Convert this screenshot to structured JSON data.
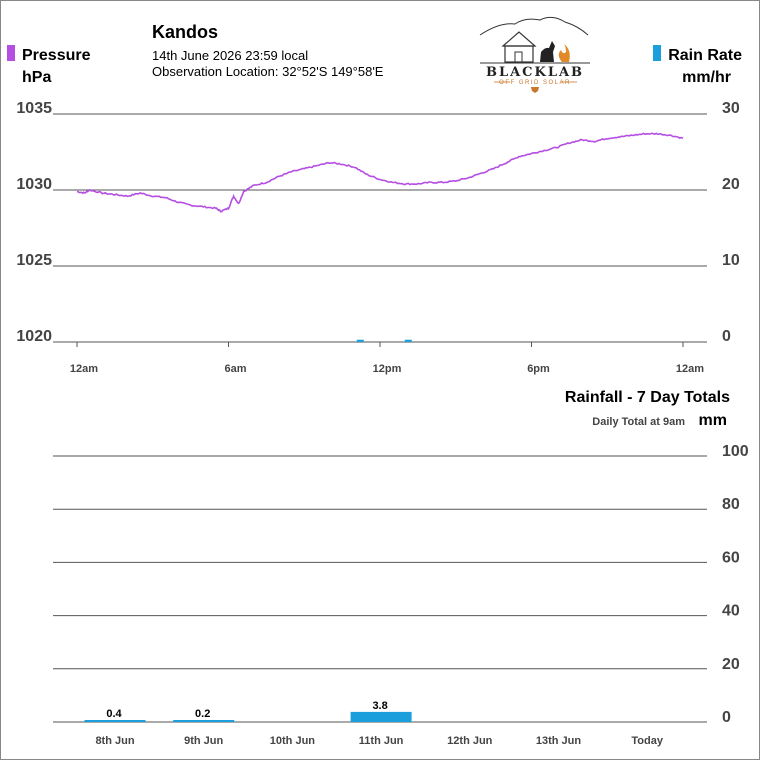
{
  "header": {
    "station": "Kandos",
    "date_time": "14th June 2026  23:59 local",
    "location_label": "Observation Location:",
    "location_coords": "32°52'S 149°58'E"
  },
  "logo": {
    "brand": "BLACKLAB",
    "tagline": "OFF GRID SOLAR",
    "accent_color": "#c8782a"
  },
  "colors": {
    "pressure": "#b54fe3",
    "rain": "#1a9fdc",
    "grid": "#555555",
    "axis_text": "#444444"
  },
  "chart_data": [
    {
      "type": "line",
      "legend_left": {
        "name": "Pressure",
        "unit": "hPa"
      },
      "legend_right": {
        "name": "Rain Rate",
        "unit": "mm/hr"
      },
      "y_left": {
        "range": [
          1020,
          1035
        ],
        "ticks": [
          "1035",
          "1030",
          "1025",
          "1020"
        ]
      },
      "y_right": {
        "range": [
          0,
          30
        ],
        "ticks": [
          "30",
          "20",
          "10",
          "0"
        ]
      },
      "x_ticks": [
        "12am",
        "6am",
        "12pm",
        "6pm",
        "12am"
      ],
      "x_range_hours": [
        0,
        24
      ],
      "pressure_series": {
        "x_hours": [
          0,
          0.3,
          0.5,
          1,
          1.5,
          2,
          2.5,
          3,
          3.5,
          4,
          4.5,
          5,
          5.5,
          5.7,
          6,
          6.2,
          6.4,
          6.6,
          7,
          7.5,
          8,
          8.5,
          9,
          9.5,
          10,
          10.5,
          11,
          11.5,
          12,
          12.5,
          13,
          13.5,
          14,
          14.5,
          15,
          15.5,
          16,
          16.5,
          17,
          17.5,
          18,
          18.5,
          19,
          19.5,
          20,
          20.5,
          21,
          21.5,
          22,
          22.5,
          23,
          23.5,
          24
        ],
        "values_hpa": [
          1029.9,
          1029.8,
          1030.0,
          1029.8,
          1029.7,
          1029.6,
          1029.8,
          1029.6,
          1029.5,
          1029.2,
          1029.0,
          1028.9,
          1028.8,
          1028.6,
          1028.8,
          1029.6,
          1029.1,
          1029.9,
          1030.3,
          1030.5,
          1030.9,
          1031.2,
          1031.4,
          1031.6,
          1031.8,
          1031.7,
          1031.5,
          1031.0,
          1030.7,
          1030.5,
          1030.4,
          1030.4,
          1030.5,
          1030.5,
          1030.6,
          1030.8,
          1031.1,
          1031.4,
          1031.8,
          1032.2,
          1032.4,
          1032.6,
          1032.8,
          1033.1,
          1033.3,
          1033.2,
          1033.4,
          1033.5,
          1033.6,
          1033.7,
          1033.7,
          1033.6,
          1033.4
        ]
      },
      "rain_series": {
        "x_hours": [
          11.2,
          13.1
        ],
        "values_mm_hr": [
          0.3,
          0.3
        ]
      }
    },
    {
      "type": "bar",
      "title": "Rainfall - 7 Day Totals",
      "subtitle": "Daily Total at 9am",
      "unit": "mm",
      "categories": [
        "8th Jun",
        "9th Jun",
        "10th Jun",
        "11th Jun",
        "12th Jun",
        "13th Jun",
        "Today"
      ],
      "values": [
        0.4,
        0.2,
        0,
        3.8,
        0,
        0,
        0
      ],
      "labels": [
        "0.4",
        "0.2",
        "",
        "3.8",
        "",
        "",
        ""
      ],
      "ylim": [
        0,
        100
      ],
      "y_ticks": [
        "100",
        "80",
        "60",
        "40",
        "20",
        "0"
      ]
    }
  ]
}
